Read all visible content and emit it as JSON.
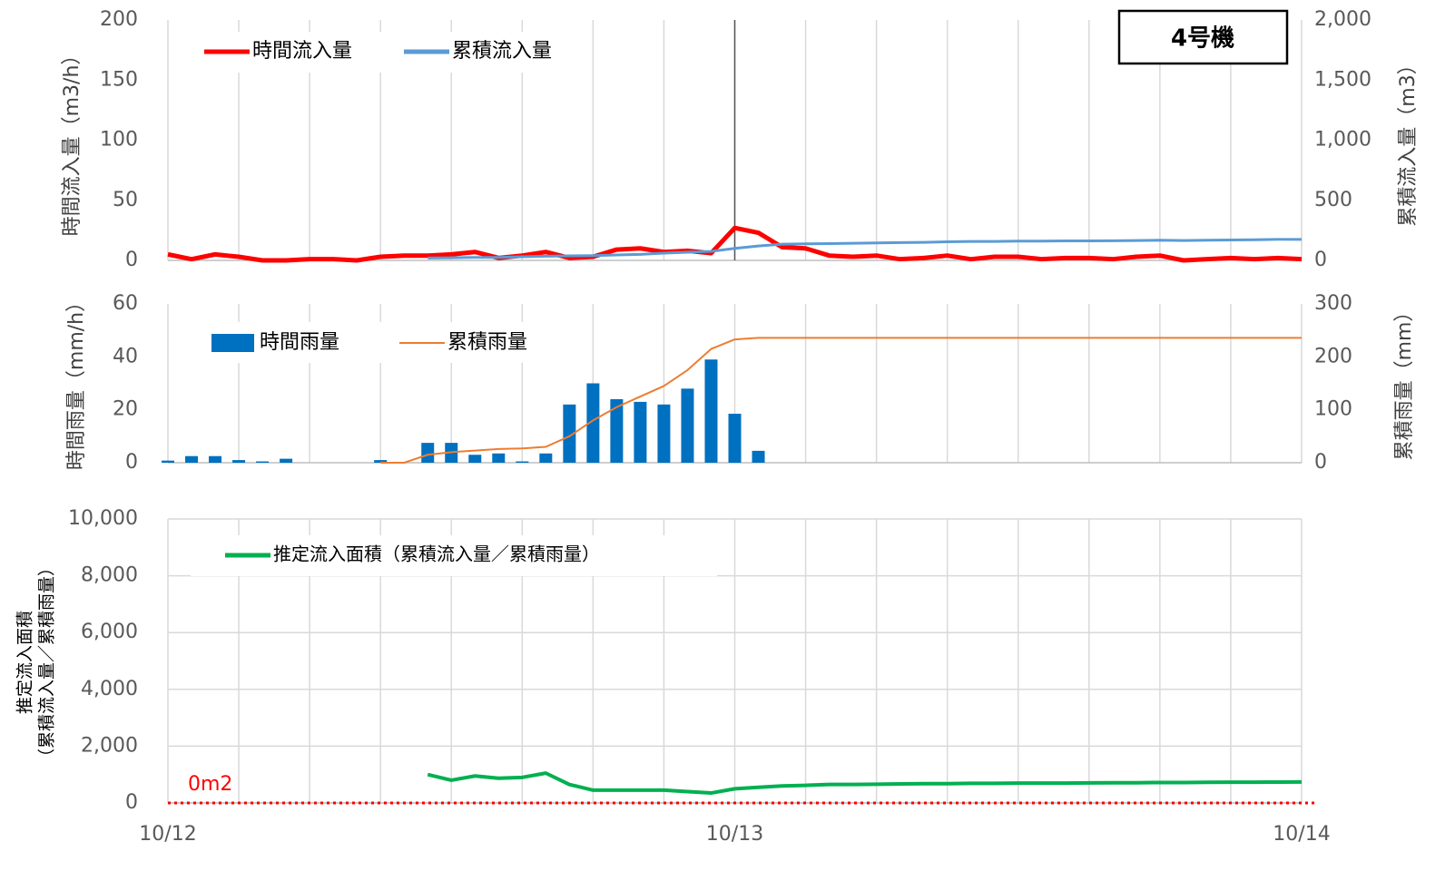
{
  "chart_data": [
    {
      "type": "line",
      "title": "4号機",
      "ylabel": "時間流入量（m3/h）",
      "y2label": "累積流入量（m3）",
      "x": [
        0,
        1,
        2,
        3,
        4,
        5,
        6,
        7,
        8,
        9,
        10,
        11,
        12,
        13,
        14,
        15,
        16,
        17,
        18,
        19,
        20,
        21,
        22,
        23,
        24,
        25,
        26,
        27,
        28,
        29,
        30,
        31,
        32,
        33,
        34,
        35,
        36,
        37,
        38,
        39,
        40,
        41,
        42,
        43,
        44,
        45,
        46,
        47,
        48
      ],
      "xlim": [
        0,
        48
      ],
      "xgrid": [
        0,
        3,
        6,
        9,
        12,
        15,
        18,
        21,
        24,
        27,
        30,
        33,
        36,
        39,
        42,
        45,
        48
      ],
      "marker_x": 24,
      "ylim": [
        0,
        200
      ],
      "yticks": [
        0,
        50,
        100,
        150,
        200
      ],
      "y2lim": [
        0,
        2000
      ],
      "y2ticks": [
        0,
        500,
        {
          "value": 1000,
          "label": "1,000"
        },
        {
          "value": 1500,
          "label": "1,500"
        },
        {
          "value": 2000,
          "label": "2,000"
        }
      ],
      "series": [
        {
          "name": "時間流入量",
          "color": "#ff0000",
          "values": [
            5,
            1,
            5,
            3,
            0,
            0,
            1,
            1,
            0,
            3,
            4,
            4,
            5,
            7,
            2,
            4,
            7,
            2,
            3,
            9,
            10,
            7,
            8,
            6,
            27,
            23,
            11,
            10,
            4,
            3,
            4,
            1,
            2,
            4,
            1,
            3,
            3,
            1,
            2,
            2,
            1,
            3,
            4,
            0,
            1,
            2,
            1,
            2,
            1
          ]
        },
        {
          "name": "累積流入量",
          "color": "#5b9bd5",
          "axis": "y2",
          "values": [
            null,
            null,
            null,
            null,
            null,
            null,
            null,
            null,
            null,
            null,
            null,
            20,
            22,
            25,
            25,
            30,
            35,
            38,
            40,
            45,
            50,
            60,
            68,
            75,
            100,
            120,
            135,
            138,
            140,
            142,
            145,
            148,
            150,
            155,
            158,
            158,
            160,
            160,
            162,
            162,
            163,
            165,
            168,
            165,
            168,
            170,
            172,
            175,
            175
          ]
        }
      ]
    },
    {
      "type": "bar",
      "ylabel": "時間雨量（mm/h）",
      "y2label": "累積雨量（mm）",
      "x": [
        0,
        1,
        2,
        3,
        4,
        5,
        6,
        7,
        8,
        9,
        10,
        11,
        12,
        13,
        14,
        15,
        16,
        17,
        18,
        19,
        20,
        21,
        22,
        23,
        24,
        25,
        26,
        27,
        28,
        29,
        30,
        31,
        32,
        33,
        34,
        35,
        36,
        37,
        38,
        39,
        40,
        41,
        42,
        43,
        44,
        45,
        46,
        47,
        48
      ],
      "xlim": [
        0,
        48
      ],
      "xgrid": [
        0,
        3,
        6,
        9,
        12,
        15,
        18,
        21,
        24,
        27,
        30,
        33,
        36,
        39,
        42,
        45,
        48
      ],
      "ylim": [
        0,
        60
      ],
      "yticks": [
        0,
        20,
        40,
        60
      ],
      "y2lim": [
        0,
        300
      ],
      "y2ticks": [
        0,
        100,
        200,
        300
      ],
      "series": [
        {
          "name": "時間雨量",
          "type": "bar",
          "color": "#0070c0",
          "values": [
            0.8,
            2.5,
            2.5,
            1,
            0.5,
            1.5,
            0,
            0,
            0,
            1,
            0,
            7.5,
            7.5,
            3,
            3.5,
            0.5,
            3.5,
            22,
            30,
            24,
            23,
            22,
            28,
            39,
            18.5,
            4.5,
            0,
            0,
            0,
            0,
            0,
            0,
            0,
            0,
            0,
            0,
            0,
            0,
            0,
            0,
            0,
            0,
            0,
            0,
            0,
            0,
            0,
            0,
            0
          ]
        },
        {
          "name": "累積雨量",
          "type": "line",
          "color": "#ed7d31",
          "axis": "y2",
          "values": [
            null,
            null,
            null,
            null,
            null,
            null,
            null,
            null,
            null,
            0,
            0,
            15,
            20,
            23,
            26,
            27,
            30,
            50,
            80,
            105,
            125,
            145,
            175,
            215,
            233,
            236,
            236,
            236,
            236,
            236,
            236,
            236,
            236,
            236,
            236,
            236,
            236,
            236,
            236,
            236,
            236,
            236,
            236,
            236,
            236,
            236,
            236,
            236,
            236
          ]
        }
      ]
    },
    {
      "type": "line",
      "ylabel": [
        "推定流入面積",
        "（累積流入量／累積雨量）"
      ],
      "x": [
        0,
        1,
        2,
        3,
        4,
        5,
        6,
        7,
        8,
        9,
        10,
        11,
        12,
        13,
        14,
        15,
        16,
        17,
        18,
        19,
        20,
        21,
        22,
        23,
        24,
        25,
        26,
        27,
        28,
        29,
        30,
        31,
        32,
        33,
        34,
        35,
        36,
        37,
        38,
        39,
        40,
        41,
        42,
        43,
        44,
        45,
        46,
        47,
        48
      ],
      "xlim": [
        0,
        48
      ],
      "xgrid": [
        0,
        3,
        6,
        9,
        12,
        15,
        18,
        21,
        24,
        27,
        30,
        33,
        36,
        39,
        42,
        45,
        48
      ],
      "xticks": [
        {
          "value": 0,
          "label": "10/12"
        },
        {
          "value": 24,
          "label": "10/13"
        },
        {
          "value": 48,
          "label": "10/14"
        }
      ],
      "ylim": [
        0,
        10000
      ],
      "yticks": [
        0,
        {
          "value": 2000,
          "label": "2,000"
        },
        {
          "value": 4000,
          "label": "4,000"
        },
        {
          "value": 6000,
          "label": "6,000"
        },
        {
          "value": 8000,
          "label": "8,000"
        },
        {
          "value": 10000,
          "label": "10,000"
        }
      ],
      "grid": true,
      "reference_line": {
        "value": 0,
        "label": "0m2",
        "color": "#ff0000"
      },
      "series": [
        {
          "name": "推定流入面積（累積流入量／累積雨量）",
          "color": "#00b050",
          "values": [
            null,
            null,
            null,
            null,
            null,
            null,
            null,
            null,
            null,
            null,
            null,
            1000,
            800,
            950,
            870,
            900,
            1050,
            650,
            450,
            450,
            450,
            450,
            400,
            350,
            500,
            550,
            600,
            620,
            650,
            650,
            660,
            670,
            680,
            680,
            690,
            690,
            700,
            700,
            700,
            705,
            710,
            710,
            720,
            720,
            725,
            730,
            730,
            735,
            740
          ]
        }
      ]
    }
  ]
}
